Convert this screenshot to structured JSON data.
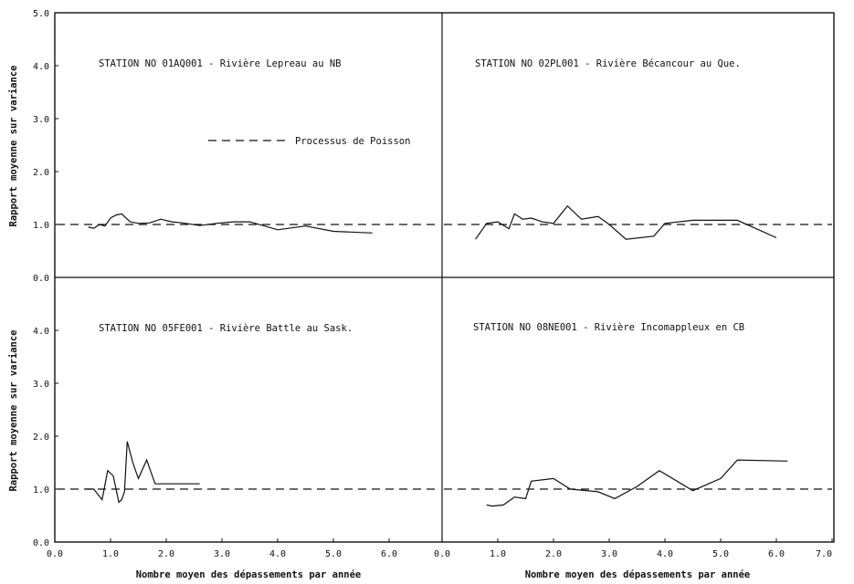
{
  "chart_data": {
    "type": "line",
    "xlabel": "Nombre moyen des dépassements par année",
    "ylabel": "Rapport moyenne sur variance",
    "legend": {
      "label": "Processus de Poisson",
      "placement": "top-right of upper-left panel"
    },
    "reference_y": 1.0,
    "x_ticks": {
      "left": [
        "0.0",
        "1.0",
        "2.0",
        "3.0",
        "4.0",
        "5.0",
        "6.0"
      ],
      "right": [
        "0.0",
        "1.0",
        "2.0",
        "3.0",
        "4.0",
        "5.0",
        "6.0",
        "7.0"
      ]
    },
    "y_ticks": {
      "top": [
        "0.0",
        "1.0",
        "2.0",
        "3.0",
        "4.0",
        "5.0"
      ],
      "bottom": [
        "0.0",
        "1.0",
        "2.0",
        "3.0",
        "4.0"
      ]
    },
    "panels": [
      {
        "title": "STATION NO 01AQ001 - Rivière Lepreau au NB",
        "xlim": [
          0,
          7
        ],
        "ylim": [
          0,
          5
        ],
        "x": [
          0.6,
          0.7,
          0.8,
          0.9,
          1.0,
          1.1,
          1.2,
          1.35,
          1.5,
          1.7,
          1.9,
          2.1,
          2.3,
          2.6,
          2.9,
          3.2,
          3.5,
          4.0,
          4.5,
          5.0,
          5.7
        ],
        "y": [
          0.95,
          0.93,
          1.0,
          0.97,
          1.12,
          1.18,
          1.2,
          1.05,
          1.02,
          1.03,
          1.1,
          1.05,
          1.03,
          0.98,
          1.02,
          1.05,
          1.05,
          0.9,
          0.97,
          0.87,
          0.84
        ]
      },
      {
        "title": "STATION NO 02PL001 - Rivière Bécancour au Que.",
        "xlim": [
          0,
          7
        ],
        "ylim": [
          0,
          5
        ],
        "x": [
          0.6,
          0.8,
          1.0,
          1.2,
          1.3,
          1.45,
          1.6,
          1.8,
          2.0,
          2.25,
          2.5,
          2.8,
          3.0,
          3.3,
          3.8,
          4.0,
          4.5,
          5.3,
          6.0
        ],
        "y": [
          0.72,
          1.02,
          1.05,
          0.92,
          1.2,
          1.1,
          1.12,
          1.05,
          1.02,
          1.35,
          1.1,
          1.15,
          1.0,
          0.72,
          0.78,
          1.02,
          1.08,
          1.08,
          0.75
        ]
      },
      {
        "title": "STATION NO 05FE001 - Rivière Battle au Sask.",
        "xlim": [
          0,
          7
        ],
        "ylim": [
          0,
          5
        ],
        "x": [
          0.55,
          0.7,
          0.85,
          0.95,
          1.05,
          1.15,
          1.2,
          1.25,
          1.3,
          1.4,
          1.5,
          1.65,
          1.8,
          2.0,
          2.3,
          2.6
        ],
        "y": [
          1.0,
          1.0,
          0.8,
          1.35,
          1.25,
          0.75,
          0.8,
          0.95,
          1.9,
          1.5,
          1.2,
          1.55,
          1.1,
          1.1,
          1.1,
          1.1
        ]
      },
      {
        "title": "STATION NO 08NE001 - Rivière Incomappleux en CB",
        "xlim": [
          0,
          7
        ],
        "ylim": [
          0,
          5
        ],
        "x": [
          0.8,
          0.9,
          1.1,
          1.3,
          1.5,
          1.6,
          2.0,
          2.3,
          2.8,
          3.1,
          3.5,
          3.9,
          4.5,
          5.0,
          5.3,
          6.2
        ],
        "y": [
          0.7,
          0.68,
          0.7,
          0.85,
          0.82,
          1.15,
          1.2,
          1.0,
          0.95,
          0.82,
          1.05,
          1.35,
          0.97,
          1.2,
          1.55,
          1.53
        ]
      }
    ]
  }
}
